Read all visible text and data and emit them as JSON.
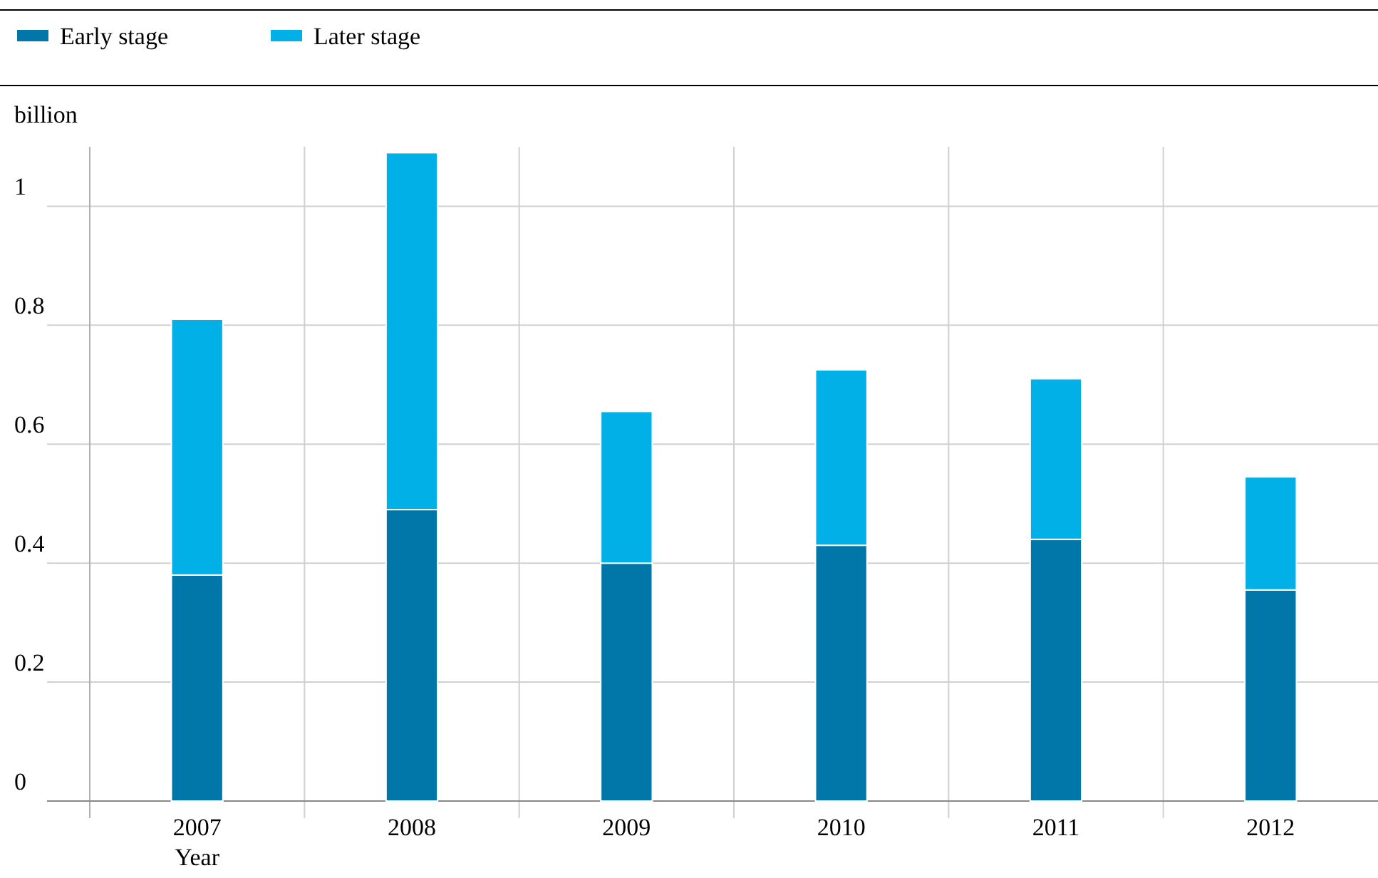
{
  "chart_data": {
    "type": "bar",
    "stacked": true,
    "ylabel": "billion",
    "xlabel": "Year",
    "categories": [
      "2007",
      "2008",
      "2009",
      "2010",
      "2011",
      "2012"
    ],
    "series": [
      {
        "name": "Early stage",
        "color": "#0077a8",
        "values": [
          0.38,
          0.49,
          0.4,
          0.43,
          0.44,
          0.355
        ]
      },
      {
        "name": "Later stage",
        "color": "#00b0e6",
        "values": [
          0.43,
          0.6,
          0.255,
          0.295,
          0.27,
          0.19
        ]
      }
    ],
    "ylim": [
      0,
      1.1
    ],
    "yticks": [
      0,
      0.2,
      0.4,
      0.6,
      0.8,
      1
    ],
    "grid": "y",
    "legend": "top left"
  }
}
